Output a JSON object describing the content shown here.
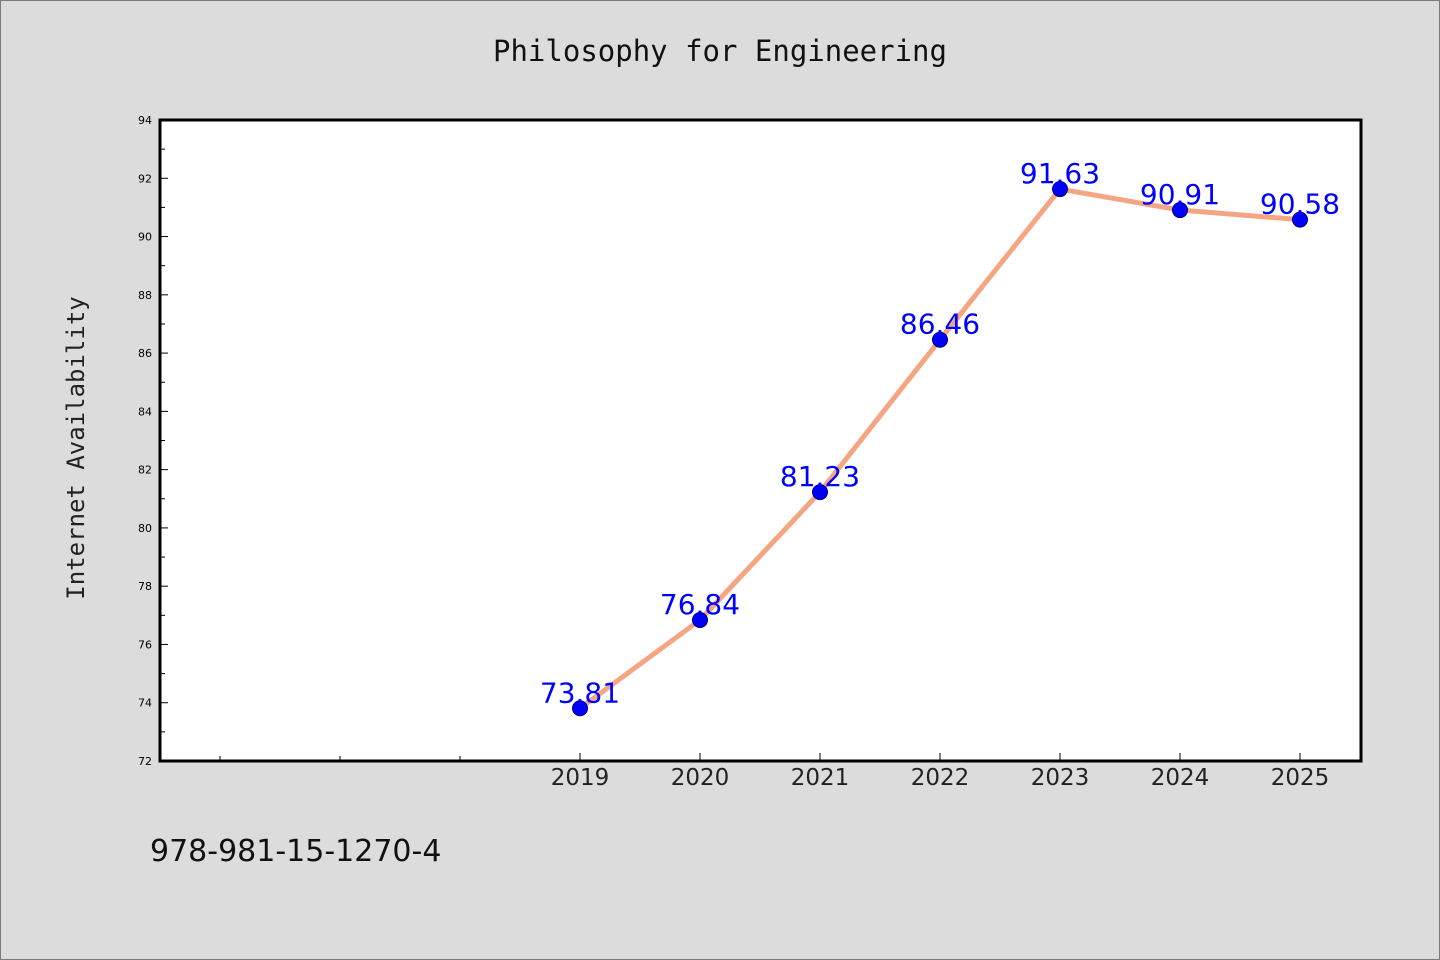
{
  "title": "Philosophy for Engineering",
  "footer_code": "978-981-15-1270-4",
  "colors": {
    "background": "#dcdcdc",
    "plot_area": "#ffffff",
    "line": "#f4a582",
    "marker": "#0000ff",
    "data_label": "#0000ff"
  },
  "chart_data": {
    "type": "line",
    "title": "Philosophy for Engineering",
    "xlabel": "",
    "ylabel": "Internet Availability",
    "x": [
      "2019",
      "2020",
      "2021",
      "2022",
      "2023",
      "2024",
      "2025"
    ],
    "series": [
      {
        "values": [
          73.81,
          76.84,
          81.23,
          86.46,
          91.63,
          90.91,
          90.58
        ],
        "labels": [
          "73.81",
          "76.84",
          "81.23",
          "86.46",
          "91.63",
          "90.91",
          "90.58"
        ]
      }
    ],
    "ylim": [
      72,
      94
    ],
    "y_ticks": [
      "72",
      "74",
      "76",
      "78",
      "80",
      "82",
      "84",
      "86",
      "88",
      "90",
      "92",
      "94"
    ],
    "grid": false,
    "legend": "none"
  }
}
